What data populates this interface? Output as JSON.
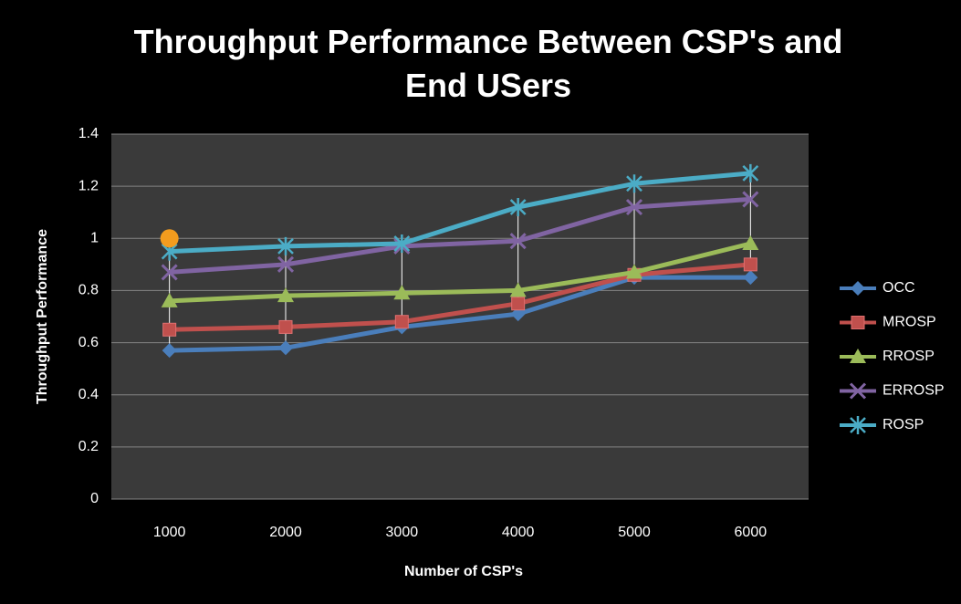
{
  "chart_data": {
    "type": "line",
    "title": "Throughput Performance Between CSP's and End USers",
    "x_label": "Number of CSP's",
    "y_label": "Throughput Performance",
    "categories": [
      "1000",
      "2000",
      "3000",
      "4000",
      "5000",
      "6000"
    ],
    "series": [
      {
        "name": "OCC",
        "color": "#4a7ebb",
        "marker": "diamond",
        "values": [
          0.57,
          0.58,
          0.66,
          0.71,
          0.85,
          0.85
        ]
      },
      {
        "name": "MROSP",
        "color": "#c0504d",
        "marker": "square",
        "values": [
          0.65,
          0.66,
          0.68,
          0.75,
          0.86,
          0.9
        ]
      },
      {
        "name": "RROSP",
        "color": "#9bbb59",
        "marker": "triangle",
        "values": [
          0.76,
          0.78,
          0.79,
          0.8,
          0.87,
          0.98
        ]
      },
      {
        "name": "ERROSP",
        "color": "#8064a2",
        "marker": "x",
        "values": [
          0.87,
          0.9,
          0.97,
          0.99,
          1.12,
          1.15
        ]
      },
      {
        "name": "ROSP",
        "color": "#4bacc6",
        "marker": "asterisk",
        "values": [
          0.95,
          0.97,
          0.98,
          1.12,
          1.21,
          1.25
        ]
      }
    ],
    "highlight": {
      "category": "1000",
      "value": 1,
      "color": "#f39c1e"
    },
    "ylim": [
      0,
      1.4
    ],
    "yticks": [
      0,
      0.2,
      0.4,
      0.6,
      0.8,
      1,
      1.2,
      1.4
    ],
    "grid": true,
    "high_low_lines": true,
    "legend": "right"
  }
}
